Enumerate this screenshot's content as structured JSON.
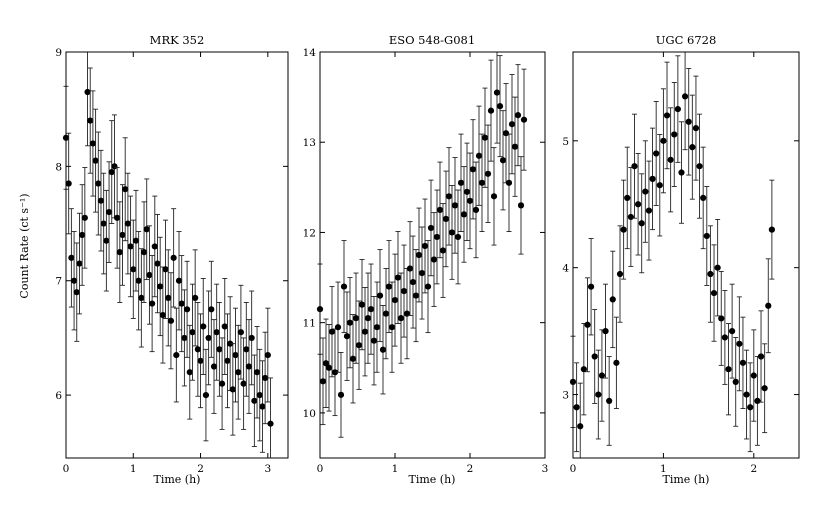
{
  "ylabel": "Count Rate (ct s⁻¹)",
  "chart_data": [
    {
      "type": "scatter",
      "title": "MRK 352",
      "xlabel": "Time (h)",
      "xlim": [
        0,
        3.3
      ],
      "ylim": [
        5.45,
        9.0
      ],
      "xticks": [
        "0",
        "1",
        "2",
        "3"
      ],
      "yticks": [
        "6",
        "7",
        "8",
        "9"
      ],
      "x": [
        0.0,
        0.04,
        0.08,
        0.12,
        0.16,
        0.2,
        0.24,
        0.28,
        0.32,
        0.36,
        0.4,
        0.44,
        0.48,
        0.52,
        0.56,
        0.6,
        0.64,
        0.68,
        0.72,
        0.76,
        0.8,
        0.84,
        0.88,
        0.92,
        0.96,
        1.0,
        1.04,
        1.08,
        1.12,
        1.16,
        1.2,
        1.24,
        1.28,
        1.32,
        1.36,
        1.4,
        1.44,
        1.48,
        1.52,
        1.56,
        1.6,
        1.64,
        1.68,
        1.72,
        1.76,
        1.8,
        1.84,
        1.88,
        1.92,
        1.96,
        2.0,
        2.04,
        2.08,
        2.12,
        2.16,
        2.2,
        2.24,
        2.28,
        2.32,
        2.36,
        2.4,
        2.44,
        2.48,
        2.52,
        2.56,
        2.6,
        2.64,
        2.68,
        2.72,
        2.76,
        2.8,
        2.84,
        2.88,
        2.92,
        2.96,
        3.0,
        3.04
      ],
      "y": [
        8.25,
        7.85,
        7.2,
        7.0,
        6.9,
        7.15,
        7.4,
        7.55,
        8.65,
        8.4,
        8.2,
        8.05,
        7.85,
        7.7,
        7.5,
        7.35,
        7.6,
        7.95,
        8.0,
        7.55,
        7.25,
        7.4,
        7.8,
        7.5,
        7.3,
        7.1,
        7.35,
        7.0,
        6.85,
        7.25,
        7.45,
        7.05,
        6.8,
        7.3,
        7.15,
        6.95,
        6.7,
        7.1,
        6.85,
        6.65,
        7.2,
        6.35,
        7.0,
        6.8,
        6.5,
        6.75,
        6.2,
        6.55,
        6.85,
        6.4,
        6.3,
        6.6,
        6.0,
        6.5,
        6.75,
        6.25,
        6.55,
        6.4,
        6.1,
        6.6,
        6.3,
        6.45,
        6.05,
        6.35,
        6.2,
        6.55,
        6.1,
        6.4,
        6.25,
        6.5,
        5.95,
        6.2,
        6.0,
        5.9,
        6.15,
        6.35,
        5.75
      ],
      "yerr": [
        0.45,
        0.44,
        0.43,
        0.43,
        0.43,
        0.44,
        0.44,
        0.44,
        0.47,
        0.46,
        0.46,
        0.45,
        0.45,
        0.44,
        0.44,
        0.44,
        0.44,
        0.45,
        0.45,
        0.44,
        0.44,
        0.44,
        0.45,
        0.44,
        0.44,
        0.43,
        0.44,
        0.43,
        0.43,
        0.44,
        0.44,
        0.43,
        0.42,
        0.44,
        0.43,
        0.43,
        0.42,
        0.43,
        0.42,
        0.42,
        0.43,
        0.41,
        0.43,
        0.42,
        0.42,
        0.42,
        0.41,
        0.42,
        0.42,
        0.41,
        0.41,
        0.42,
        0.4,
        0.41,
        0.42,
        0.41,
        0.42,
        0.41,
        0.4,
        0.42,
        0.41,
        0.41,
        0.4,
        0.41,
        0.41,
        0.41,
        0.4,
        0.41,
        0.41,
        0.41,
        0.4,
        0.4,
        0.4,
        0.4,
        0.4,
        0.41,
        0.4
      ]
    },
    {
      "type": "scatter",
      "title": "ESO 548-G081",
      "xlabel": "Time (h)",
      "xlim": [
        0,
        3.0
      ],
      "ylim": [
        9.5,
        14.0
      ],
      "xticks": [
        "0",
        "1",
        "2",
        "3"
      ],
      "yticks": [
        "10",
        "11",
        "12",
        "13",
        "14"
      ],
      "x": [
        0.0,
        0.04,
        0.08,
        0.12,
        0.16,
        0.2,
        0.24,
        0.28,
        0.32,
        0.36,
        0.4,
        0.44,
        0.48,
        0.52,
        0.56,
        0.6,
        0.64,
        0.68,
        0.72,
        0.76,
        0.8,
        0.84,
        0.88,
        0.92,
        0.96,
        1.0,
        1.04,
        1.08,
        1.12,
        1.16,
        1.2,
        1.24,
        1.28,
        1.32,
        1.36,
        1.4,
        1.44,
        1.48,
        1.52,
        1.56,
        1.6,
        1.64,
        1.68,
        1.72,
        1.76,
        1.8,
        1.84,
        1.88,
        1.92,
        1.96,
        2.0,
        2.04,
        2.08,
        2.12,
        2.16,
        2.2,
        2.24,
        2.28,
        2.32,
        2.36,
        2.4,
        2.44,
        2.48,
        2.52,
        2.56,
        2.6,
        2.64,
        2.68,
        2.72
      ],
      "y": [
        11.15,
        10.35,
        10.55,
        10.5,
        10.9,
        10.45,
        10.95,
        10.2,
        11.4,
        10.85,
        11.0,
        10.6,
        11.05,
        10.75,
        11.2,
        10.9,
        11.05,
        11.15,
        10.8,
        10.95,
        11.3,
        10.7,
        11.1,
        11.4,
        10.95,
        11.25,
        11.5,
        11.05,
        11.35,
        11.1,
        11.6,
        11.45,
        11.3,
        11.75,
        11.55,
        11.85,
        11.4,
        12.05,
        11.7,
        11.95,
        12.25,
        11.8,
        12.15,
        12.4,
        12.0,
        12.3,
        11.95,
        12.55,
        12.2,
        12.45,
        12.35,
        12.7,
        12.25,
        12.85,
        12.55,
        13.05,
        12.65,
        13.35,
        12.4,
        13.55,
        13.4,
        12.8,
        13.1,
        12.55,
        13.2,
        12.95,
        13.3,
        12.3,
        13.25
      ],
      "yerr": [
        0.5,
        0.48,
        0.49,
        0.48,
        0.5,
        0.48,
        0.5,
        0.47,
        0.51,
        0.49,
        0.5,
        0.49,
        0.5,
        0.49,
        0.5,
        0.49,
        0.5,
        0.5,
        0.49,
        0.5,
        0.51,
        0.49,
        0.5,
        0.51,
        0.5,
        0.51,
        0.51,
        0.5,
        0.51,
        0.5,
        0.52,
        0.51,
        0.51,
        0.52,
        0.51,
        0.52,
        0.51,
        0.53,
        0.52,
        0.52,
        0.53,
        0.52,
        0.53,
        0.54,
        0.52,
        0.53,
        0.52,
        0.54,
        0.53,
        0.54,
        0.53,
        0.55,
        0.53,
        0.55,
        0.54,
        0.55,
        0.54,
        0.56,
        0.54,
        0.56,
        0.56,
        0.55,
        0.55,
        0.54,
        0.55,
        0.55,
        0.56,
        0.54,
        0.56
      ]
    },
    {
      "type": "scatter",
      "title": "UGC 6728",
      "xlabel": "Time (h)",
      "xlim": [
        0,
        2.5
      ],
      "ylim": [
        2.5,
        5.7
      ],
      "xticks": [
        "0",
        "1",
        "2"
      ],
      "yticks": [
        "3",
        "4",
        "5"
      ],
      "x": [
        0.0,
        0.04,
        0.08,
        0.12,
        0.16,
        0.2,
        0.24,
        0.28,
        0.32,
        0.36,
        0.4,
        0.44,
        0.48,
        0.52,
        0.56,
        0.6,
        0.64,
        0.68,
        0.72,
        0.76,
        0.8,
        0.84,
        0.88,
        0.92,
        0.96,
        1.0,
        1.04,
        1.08,
        1.12,
        1.16,
        1.2,
        1.24,
        1.28,
        1.32,
        1.36,
        1.4,
        1.44,
        1.48,
        1.52,
        1.56,
        1.6,
        1.64,
        1.68,
        1.72,
        1.76,
        1.8,
        1.84,
        1.88,
        1.92,
        1.96,
        2.0,
        2.04,
        2.08,
        2.12,
        2.16,
        2.2
      ],
      "y": [
        3.1,
        2.9,
        2.75,
        3.2,
        3.55,
        3.85,
        3.3,
        3.0,
        3.15,
        3.5,
        2.95,
        3.75,
        3.25,
        3.95,
        4.3,
        4.55,
        4.4,
        4.8,
        4.5,
        4.35,
        4.6,
        4.45,
        4.7,
        4.9,
        4.65,
        5.0,
        5.2,
        4.85,
        5.05,
        5.25,
        4.75,
        5.35,
        5.15,
        4.95,
        5.1,
        4.8,
        4.55,
        4.25,
        3.95,
        3.8,
        4.0,
        3.6,
        3.45,
        3.2,
        3.5,
        3.1,
        3.4,
        3.25,
        3.0,
        2.9,
        3.15,
        2.95,
        3.3,
        3.05,
        3.7,
        4.3
      ],
      "yerr": [
        0.36,
        0.35,
        0.34,
        0.36,
        0.37,
        0.38,
        0.37,
        0.35,
        0.36,
        0.37,
        0.35,
        0.38,
        0.36,
        0.38,
        0.39,
        0.4,
        0.39,
        0.41,
        0.4,
        0.39,
        0.4,
        0.39,
        0.4,
        0.41,
        0.4,
        0.41,
        0.42,
        0.41,
        0.41,
        0.42,
        0.4,
        0.42,
        0.42,
        0.41,
        0.41,
        0.41,
        0.4,
        0.39,
        0.38,
        0.38,
        0.38,
        0.37,
        0.37,
        0.36,
        0.37,
        0.35,
        0.37,
        0.36,
        0.35,
        0.35,
        0.36,
        0.35,
        0.36,
        0.35,
        0.37,
        0.39
      ]
    }
  ]
}
